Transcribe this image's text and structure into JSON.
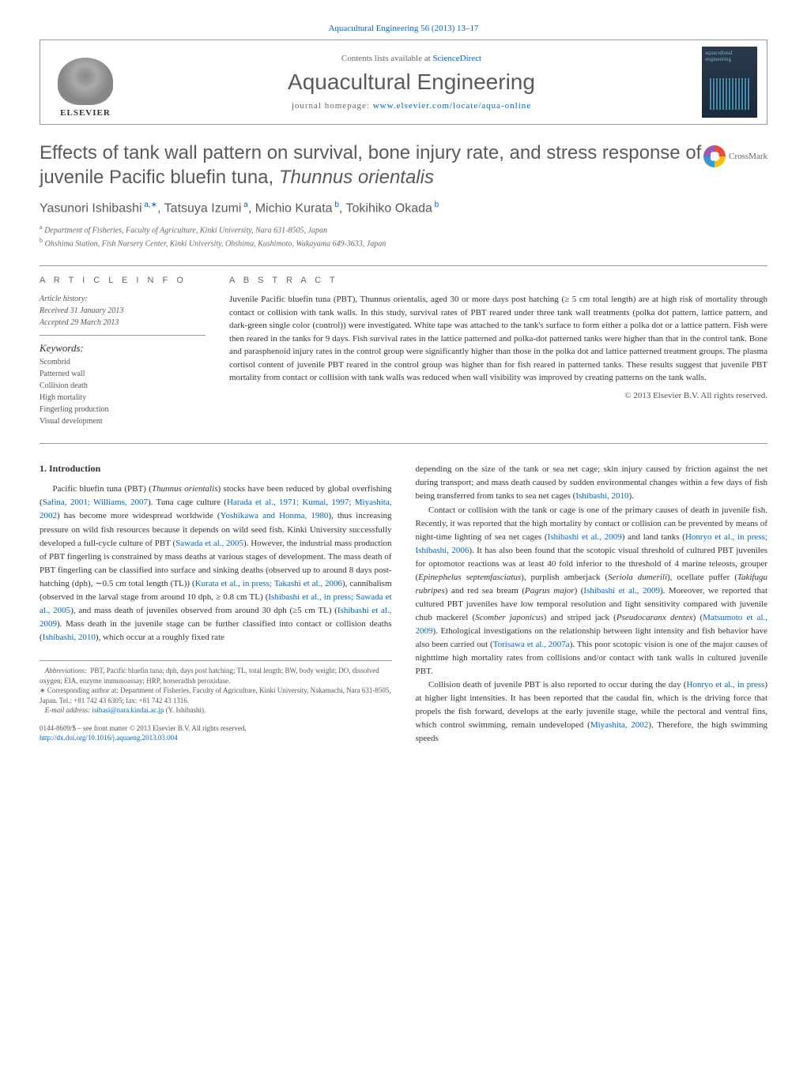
{
  "journal_ref": "Aquacultural Engineering 56 (2013) 13–17",
  "header": {
    "contents_prefix": "Contents lists available at ",
    "contents_link": "ScienceDirect",
    "journal_title": "Aquacultural Engineering",
    "homepage_prefix": "journal homepage: ",
    "homepage_url": "www.elsevier.com/locate/aqua-online",
    "publisher": "ELSEVIER",
    "cover_text": "aquacultural engineering"
  },
  "crossmark_label": "CrossMark",
  "article": {
    "title": "Effects of tank wall pattern on survival, bone injury rate, and stress response of juvenile Pacific bluefin tuna, Thunnus orientalis",
    "authors_html": "Yasunori Ishibashi<sup> a,∗</sup>, Tatsuya Izumi<sup> a</sup>, Michio Kurata<sup> b</sup>, Tokihiko Okada<sup> b</sup>",
    "affiliations": [
      "a Department of Fisheries, Faculty of Agriculture, Kinki University, Nara 631-8505, Japan",
      "b Ohshima Station, Fish Nursery Center, Kinki University, Ohshima, Kushimoto, Wakayama 649-3633, Japan"
    ]
  },
  "info": {
    "section_label": "A R T I C L E   I N F O",
    "history_label": "Article history:",
    "received": "Received 31 January 2013",
    "accepted": "Accepted 29 March 2013",
    "keywords_label": "Keywords:",
    "keywords": [
      "Scombrid",
      "Patterned wall",
      "Collision death",
      "High mortality",
      "Fingerling production",
      "Visual development"
    ]
  },
  "abstract": {
    "section_label": "A B S T R A C T",
    "text": "Juvenile Pacific bluefin tuna (PBT), Thunnus orientalis, aged 30 or more days post hatching (≥ 5 cm total length) are at high risk of mortality through contact or collision with tank walls. In this study, survival rates of PBT reared under three tank wall treatments (polka dot pattern, lattice pattern, and dark-green single color (control)) were investigated. White tape was attached to the tank's surface to form either a polka dot or a lattice pattern. Fish were then reared in the tanks for 9 days. Fish survival rates in the lattice patterned and polka-dot patterned tanks were higher than that in the control tank. Bone and parasphenoid injury rates in the control group were significantly higher than those in the polka dot and lattice patterned treatment groups. The plasma cortisol content of juvenile PBT reared in the control group was higher than for fish reared in patterned tanks. These results suggest that juvenile PBT mortality from contact or collision with tank walls was reduced when wall visibility was improved by creating patterns on the tank walls.",
    "copyright": "© 2013 Elsevier B.V. All rights reserved."
  },
  "body": {
    "intro_heading": "1.  Introduction",
    "left_html": "Pacific bluefin tuna (PBT) (<span class=\"species\">Thunnus orientalis</span>) stocks have been reduced by global overfishing (<a>Safina, 2001; Williams, 2007</a>). Tuna cage culture (<a>Harada et al., 1971; Kumai, 1997; Miyashita, 2002</a>) has become more widespread worldwide (<a>Yoshikawa and Honma, 1980</a>), thus increasing pressure on wild fish resources because it depends on wild seed fish. Kinki University successfully developed a full-cycle culture of PBT (<a>Sawada et al., 2005</a>). However, the industrial mass production of PBT fingerling is constrained by mass deaths at various stages of development. The mass death of PBT fingerling can be classified into surface and sinking deaths (observed up to around 8 days post-hatching (dph), ∼0.5 cm total length (TL)) (<a>Kurata et al., in press; Takashi et al., 2006</a>), cannibalism (observed in the larval stage from around 10 dph, ≥ 0.8 cm TL) (<a>Ishibashi et al., in press; Sawada et al., 2005</a>), and mass death of juveniles observed from around 30 dph (≥5 cm TL) (<a>Ishibashi et al., 2009</a>). Mass death in the juvenile stage can be further classified into contact or collision deaths (<a>Ishibashi, 2010</a>), which occur at a roughly fixed rate",
    "right_html_p1": "depending on the size of the tank or sea net cage; skin injury caused by friction against the net during transport; and mass death caused by sudden environmental changes within a few days of fish being transferred from tanks to sea net cages (<a>Ishibashi, 2010</a>).",
    "right_html_p2": "Contact or collision with the tank or cage is one of the primary causes of death in juvenile fish. Recently, it was reported that the high mortality by contact or collision can be prevented by means of night-time lighting of sea net cages (<a>Ishibashi et al., 2009</a>) and land tanks (<a>Honryo et al., in press; Ishibashi, 2006</a>). It has also been found that the scotopic visual threshold of cultured PBT juveniles for optomotor reactions was at least 40 fold inferior to the threshold of 4 marine teleosts, grouper (<span class=\"species\">Epinephelus septemfasciatus</span>), purplish amberjack (<span class=\"species\">Seriola dumerili</span>), ocellate puffer (<span class=\"species\">Takifugu rubripes</span>) and red sea bream (<span class=\"species\">Pagrus major</span>) (<a>Ishibashi et al., 2009</a>). Moreover, we reported that cultured PBT juveniles have low temporal resolution and light sensitivity compared with juvenile chub mackerel (<span class=\"species\">Scomber japonicus</span>) and striped jack (<span class=\"species\">Pseudocaranx dentex</span>) (<a>Matsumoto et al., 2009</a>). Ethological investigations on the relationship between light intensity and fish behavior have also been carried out (<a>Torisawa et al., 2007a</a>). This poor scotopic vision is one of the major causes of nighttime high mortality rates from collisions and/or contact with tank walls in cultured juvenile PBT.",
    "right_html_p3": "Collision death of juvenile PBT is also reported to occur during the day (<a>Honryo et al., in press</a>) at higher light intensities. It has been reported that the caudal fin, which is the driving force that propels the fish forward, develops at the early juvenile stage, while the pectoral and ventral fins, which control swimming, remain undeveloped (<a>Miyashita, 2002</a>). Therefore, the high swimming speeds"
  },
  "footnotes": {
    "abbrev_label": "Abbreviations:",
    "abbrev_text": "PBT, Pacific bluefin tuna; dph, days post hatching; TL, total length; BW, body weight; DO, dissolved oxygen; EIA, enzyme immunoassay; HRP, horseradish peroxidase.",
    "corresponding": "∗ Corresponding author at: Department of Fisheries, Faculty of Agriculture, Kinki University, Nakamachi, Nara 631-8505, Japan. Tel.: +81 742 43 6305; fax: +81 742 43 1316.",
    "email_label": "E-mail address:",
    "email": "isibasi@nara.kindai.ac.jp",
    "email_suffix": "(Y. Ishibashi)."
  },
  "footer": {
    "issn_line": "0144-8609/$ – see front matter © 2013 Elsevier B.V. All rights reserved.",
    "doi": "http://dx.doi.org/10.1016/j.aquaeng.2013.03.004"
  },
  "colors": {
    "link": "#0066cc",
    "text": "#333333",
    "muted": "#5a5a5a",
    "rule": "#999999"
  }
}
